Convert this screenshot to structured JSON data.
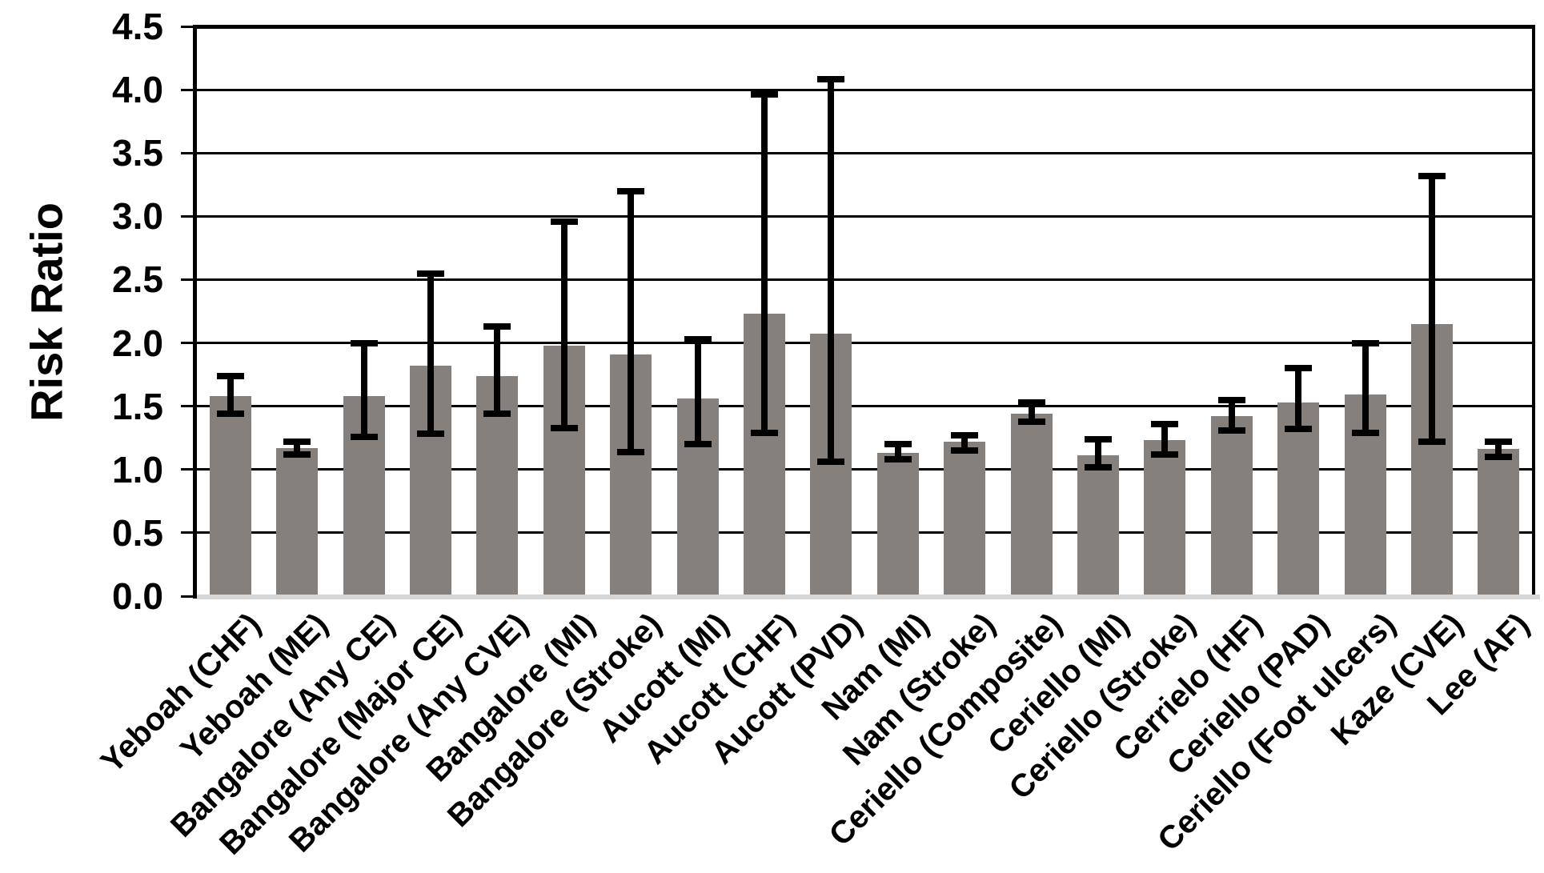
{
  "chart_data": {
    "type": "bar",
    "title": "",
    "ylabel": "Risk Ratio",
    "xlabel": "",
    "ylim": [
      0.0,
      4.5
    ],
    "ytick_step": 0.5,
    "y_tick_labels": [
      "0.0",
      "0.5",
      "1.0",
      "1.5",
      "2.0",
      "2.5",
      "3.0",
      "3.5",
      "4.0",
      "4.5"
    ],
    "grid": true,
    "legend_position": "none",
    "bar_color": "#85807C",
    "error_bar_color": "#000000",
    "categories": [
      "Yeboah (CHF)",
      "Yeboah (ME)",
      "Bangalore (Any CE)",
      "Bangalore (Major CE)",
      "Bangalore (Any CVE)",
      "Bangalore (MI)",
      "Bangalore (Stroke)",
      "Aucott (MI)",
      "Aucott (CHF)",
      "Aucott (PVD)",
      "Nam (MI)",
      "Nam (Stroke)",
      "Ceriello (Composite)",
      "Ceriello (MI)",
      "Ceriello (Stroke)",
      "Cerrielo (HF)",
      "Ceriello (PAD)",
      "Ceriello (Foot ulcers)",
      "Kaze (CVE)",
      "Lee (AF)"
    ],
    "values": [
      1.58,
      1.17,
      1.58,
      1.82,
      1.74,
      1.98,
      1.91,
      1.56,
      2.23,
      2.07,
      1.13,
      1.22,
      1.44,
      1.11,
      1.23,
      1.42,
      1.53,
      1.59,
      2.15,
      1.16
    ],
    "error_low": [
      1.44,
      1.12,
      1.26,
      1.28,
      1.44,
      1.33,
      1.14,
      1.2,
      1.29,
      1.06,
      1.08,
      1.15,
      1.38,
      1.02,
      1.12,
      1.31,
      1.32,
      1.29,
      1.22,
      1.1
    ],
    "error_high": [
      1.74,
      1.22,
      2.0,
      2.55,
      2.13,
      2.96,
      3.2,
      2.03,
      3.96,
      4.08,
      1.2,
      1.27,
      1.53,
      1.24,
      1.36,
      1.55,
      1.8,
      2.0,
      3.32,
      1.22
    ]
  }
}
